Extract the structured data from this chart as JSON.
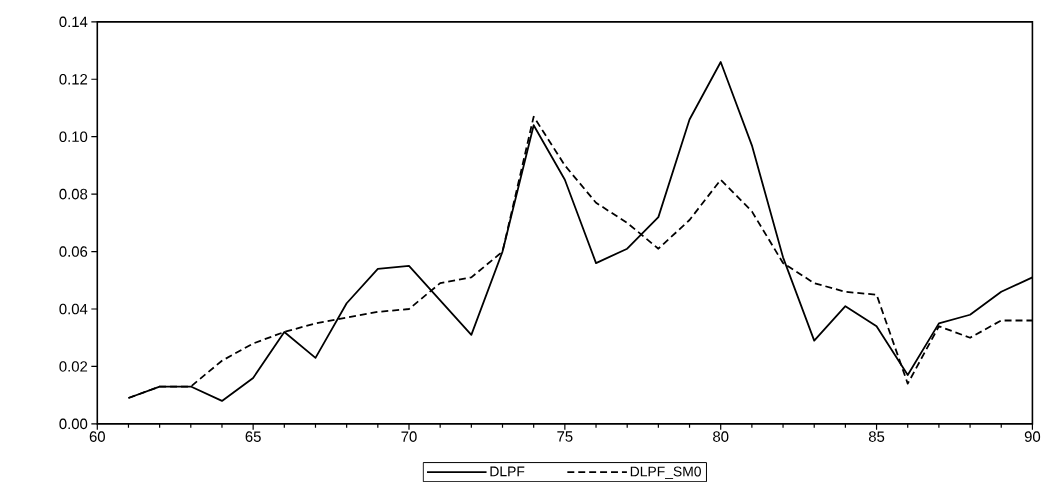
{
  "chart_data": {
    "type": "line",
    "x": [
      61,
      62,
      63,
      64,
      65,
      66,
      67,
      68,
      69,
      70,
      71,
      72,
      73,
      74,
      75,
      76,
      77,
      78,
      79,
      80,
      81,
      82,
      83,
      84,
      85,
      86,
      87,
      88,
      89,
      90
    ],
    "series": [
      {
        "name": "DLPF",
        "color": "#000000",
        "line_style": "solid",
        "values": [
          0.009,
          0.013,
          0.013,
          0.008,
          0.016,
          0.032,
          0.023,
          0.042,
          0.054,
          0.055,
          0.043,
          0.031,
          0.06,
          0.104,
          0.085,
          0.056,
          0.061,
          0.072,
          0.106,
          0.126,
          0.097,
          0.058,
          0.029,
          0.041,
          0.034,
          0.017,
          0.035,
          0.038,
          0.046,
          0.051
        ]
      },
      {
        "name": "DLPF_SM0",
        "color": "#000000",
        "line_style": "dashed",
        "values": [
          0.009,
          0.013,
          0.013,
          0.022,
          0.028,
          0.032,
          0.035,
          0.037,
          0.039,
          0.04,
          0.049,
          0.051,
          0.06,
          0.107,
          0.09,
          0.077,
          0.07,
          0.061,
          0.071,
          0.085,
          0.074,
          0.056,
          0.049,
          0.046,
          0.045,
          0.014,
          0.034,
          0.03,
          0.036,
          0.036
        ]
      }
    ],
    "xlim": [
      60,
      90
    ],
    "xticks": [
      60,
      65,
      70,
      75,
      80,
      85,
      90
    ],
    "ylim": [
      0,
      0.14
    ],
    "yticks": [
      {
        "value": 0,
        "label": "0.00"
      },
      {
        "value": 0.02,
        "label": "0.02"
      },
      {
        "value": 0.04,
        "label": "0.04"
      },
      {
        "value": 0.06,
        "label": "0.06"
      },
      {
        "value": 0.08,
        "label": "0.08"
      },
      {
        "value": 0.1,
        "label": "0.10"
      },
      {
        "value": 0.12,
        "label": "0.12"
      },
      {
        "value": 0.14,
        "label": "0.14"
      }
    ],
    "legend": "bottom",
    "grid": false,
    "marker": "none"
  }
}
